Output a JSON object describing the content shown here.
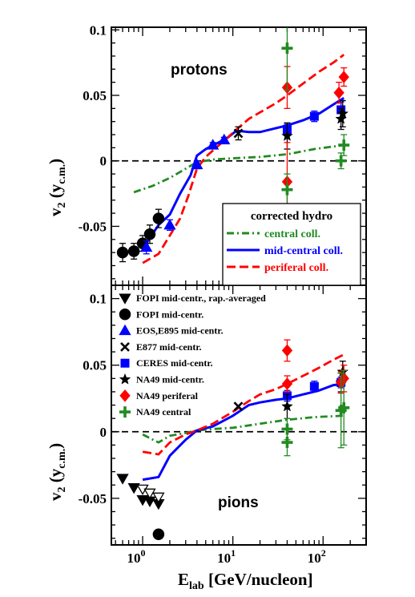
{
  "chart_data": {
    "type": "scatter",
    "x_axis": {
      "label_main": "E",
      "label_sub": "lab",
      "label_rest": " [GeV/nucleon]",
      "scale": "log",
      "xlim": [
        0.45,
        300
      ],
      "tick_labels": [
        {
          "value": 1,
          "base": "10",
          "exp": "0"
        },
        {
          "value": 10,
          "base": "10",
          "exp": "1"
        },
        {
          "value": 100,
          "base": "10",
          "exp": "2"
        }
      ]
    },
    "y_axis": {
      "label_main": "v",
      "label_sub1": "2",
      "label_mid": " (y",
      "label_sub2": "c.m.",
      "label_end": ")"
    },
    "panels": [
      {
        "id": "protons",
        "label": "protons",
        "ylim": [
          -0.095,
          0.102
        ],
        "yticks": [
          {
            "value": 0.1,
            "label": "0.1"
          },
          {
            "value": 0.05,
            "label": "0.05"
          },
          {
            "value": 0,
            "label": "0"
          },
          {
            "value": -0.05,
            "label": "-0.05"
          }
        ],
        "legend": {
          "title": "corrected hydro",
          "entries": [
            {
              "name": "central coll.",
              "color": "#228B22",
              "style": "dashdot"
            },
            {
              "name": "mid-central coll.",
              "color": "#0000FF",
              "style": "solid"
            },
            {
              "name": "periferal coll.",
              "color": "#FF0000",
              "style": "dashed"
            }
          ]
        },
        "curves": [
          {
            "name": "central coll.",
            "color": "#228B22",
            "style": "dashdot",
            "x": [
              0.8,
              1.3,
              2,
              3,
              4,
              6,
              10,
              20,
              40,
              80,
              170
            ],
            "y": [
              -0.024,
              -0.019,
              -0.013,
              -0.006,
              -0.001,
              0.001,
              0.002,
              0.003,
              0.005,
              0.009,
              0.012
            ]
          },
          {
            "name": "mid-central coll.",
            "color": "#0000FF",
            "style": "solid",
            "x": [
              1,
              1.5,
              2,
              2.6,
              3.4,
              4,
              5,
              6.5,
              8.5,
              11,
              15,
              20,
              30,
              40,
              60,
              90,
              130,
              170
            ],
            "y": [
              -0.067,
              -0.049,
              -0.041,
              -0.025,
              -0.011,
              0.004,
              0.009,
              0.013,
              0.017,
              0.023,
              0.022,
              0.022,
              0.025,
              0.027,
              0.031,
              0.036,
              0.043,
              0.048
            ]
          },
          {
            "name": "periferal coll.",
            "color": "#FF0000",
            "style": "dashed",
            "x": [
              1,
              1.5,
              2,
              2.6,
              3.2,
              4,
              5,
              6.5,
              8.5,
              11,
              15,
              20,
              30,
              40,
              60,
              90,
              130,
              170
            ],
            "y": [
              -0.078,
              -0.071,
              -0.057,
              -0.044,
              -0.027,
              -0.006,
              0.003,
              0.01,
              0.017,
              0.024,
              0.032,
              0.037,
              0.044,
              0.05,
              0.059,
              0.068,
              0.075,
              0.081
            ]
          }
        ],
        "points": [
          {
            "series": "FOPI mid-centr.",
            "x": 0.6,
            "y": -0.07,
            "err": 0.007
          },
          {
            "series": "FOPI mid-centr.",
            "x": 0.8,
            "y": -0.069,
            "err": 0.006
          },
          {
            "series": "FOPI mid-centr.",
            "x": 1.0,
            "y": -0.063,
            "err": 0.006
          },
          {
            "series": "FOPI mid-centr.",
            "x": 1.2,
            "y": -0.056,
            "err": 0.007
          },
          {
            "series": "FOPI mid-centr.",
            "x": 1.5,
            "y": -0.044,
            "err": 0.007
          },
          {
            "series": "EOS,E895 mid-centr.",
            "x": 1.1,
            "y": -0.066,
            "err": 0.005
          },
          {
            "series": "EOS,E895 mid-centr.",
            "x": 2.0,
            "y": -0.049,
            "err": 0.004
          },
          {
            "series": "EOS,E895 mid-centr.",
            "x": 4.0,
            "y": -0.003,
            "err": 0.003
          },
          {
            "series": "EOS,E895 mid-centr.",
            "x": 6.0,
            "y": 0.012,
            "err": 0.002
          },
          {
            "series": "EOS,E895 mid-centr.",
            "x": 8.0,
            "y": 0.016,
            "err": 0.002
          },
          {
            "series": "E877 mid-centr.",
            "x": 11.5,
            "y": 0.021,
            "err": 0.005
          },
          {
            "series": "CERES mid-centr.",
            "x": 40,
            "y": 0.024,
            "err": 0.004
          },
          {
            "series": "CERES mid-centr.",
            "x": 80,
            "y": 0.034,
            "err": 0.004
          },
          {
            "series": "CERES mid-centr.",
            "x": 158,
            "y": 0.039,
            "err": 0.006
          },
          {
            "series": "NA49 mid-centr.",
            "x": 40,
            "y": 0.019,
            "err": 0.01
          },
          {
            "series": "NA49 mid-centr.",
            "x": 158,
            "y": 0.032,
            "err": 0.008
          },
          {
            "series": "NA49 mid-centr.",
            "x": 165,
            "y": 0.036,
            "err": 0.01
          },
          {
            "series": "NA49 periferal",
            "x": 40,
            "y": 0.056,
            "err": 0.016
          },
          {
            "series": "NA49 periferal",
            "x": 40,
            "y": -0.016,
            "err": 0.03
          },
          {
            "series": "NA49 periferal",
            "x": 150,
            "y": 0.052,
            "err": 0.008
          },
          {
            "series": "NA49 periferal",
            "x": 170,
            "y": 0.064,
            "err": 0.007
          },
          {
            "series": "NA49 central",
            "x": 40,
            "y": 0.086,
            "err": 0.032
          },
          {
            "series": "NA49 central",
            "x": 40,
            "y": -0.022,
            "err": 0.012
          },
          {
            "series": "NA49 central",
            "x": 158,
            "y": 0.0,
            "err": 0.006
          },
          {
            "series": "NA49 central",
            "x": 170,
            "y": 0.012,
            "err": 0.008
          }
        ]
      },
      {
        "id": "pions",
        "label": "pions",
        "ylim": [
          -0.085,
          0.11
        ],
        "yticks": [
          {
            "value": 0.1,
            "label": "0.1"
          },
          {
            "value": 0.05,
            "label": "0.05"
          },
          {
            "value": 0,
            "label": "0"
          },
          {
            "value": -0.05,
            "label": "-0.05"
          }
        ],
        "legend": {
          "entries": [
            {
              "name": "FOPI mid-centr., rap.-averaged",
              "color": "#000000",
              "marker": "tri-down"
            },
            {
              "name": "FOPI mid-centr.",
              "color": "#000000",
              "marker": "circle"
            },
            {
              "name": "EOS,E895 mid-centr.",
              "color": "#0000FF",
              "marker": "tri-up"
            },
            {
              "name": "E877 mid-centr.",
              "color": "#000000",
              "marker": "cross"
            },
            {
              "name": "CERES mid-centr.",
              "color": "#0000FF",
              "marker": "square"
            },
            {
              "name": "NA49 mid-centr.",
              "color": "#000000",
              "marker": "star"
            },
            {
              "name": "NA49 periferal",
              "color": "#FF0000",
              "marker": "diamond"
            },
            {
              "name": "NA49 central",
              "color": "#228B22",
              "marker": "plus"
            }
          ]
        },
        "curves": [
          {
            "name": "central coll.",
            "color": "#228B22",
            "style": "dashdot",
            "x": [
              1,
              1.3,
              1.5,
              2,
              3,
              4,
              6,
              10,
              20,
              40,
              80,
              170
            ],
            "y": [
              -0.002,
              -0.006,
              -0.008,
              -0.003,
              -0.001,
              0.001,
              0.002,
              0.003,
              0.006,
              0.009,
              0.011,
              0.012
            ]
          },
          {
            "name": "mid-central coll.",
            "color": "#0000FF",
            "style": "solid",
            "x": [
              1,
              1.5,
              2,
              3,
              4,
              6,
              10,
              15,
              20,
              30,
              40,
              60,
              90,
              130,
              170
            ],
            "y": [
              -0.036,
              -0.034,
              -0.018,
              -0.006,
              0.001,
              0.004,
              0.012,
              0.02,
              0.022,
              0.024,
              0.025,
              0.028,
              0.031,
              0.035,
              0.036
            ]
          },
          {
            "name": "periferal coll.",
            "color": "#FF0000",
            "style": "dashed",
            "x": [
              1,
              1.5,
              2,
              3,
              4,
              6,
              10,
              15,
              20,
              30,
              40,
              60,
              90,
              130,
              170
            ],
            "y": [
              -0.015,
              -0.017,
              -0.008,
              -0.002,
              0.001,
              0.006,
              0.015,
              0.023,
              0.028,
              0.032,
              0.036,
              0.042,
              0.048,
              0.054,
              0.058
            ]
          }
        ],
        "points": [
          {
            "series": "FOPI mid-centr., rap.-averaged",
            "x": 0.6,
            "y": -0.035,
            "err": 0
          },
          {
            "series": "FOPI mid-centr., rap.-averaged",
            "x": 0.8,
            "y": -0.042,
            "err": 0
          },
          {
            "series": "FOPI mid-centr., rap.-averaged",
            "x": 1.0,
            "y": -0.051,
            "err": 0
          },
          {
            "series": "FOPI mid-centr., rap.-averaged",
            "x": 1.2,
            "y": -0.052,
            "err": 0
          },
          {
            "series": "FOPI mid-centr., rap.-averaged",
            "x": 1.5,
            "y": -0.054,
            "err": 0
          },
          {
            "series": "FOPI mid-centr., rap.-averaged (open)",
            "x": 1.0,
            "y": -0.043,
            "err": 0
          },
          {
            "series": "FOPI mid-centr., rap.-averaged (open)",
            "x": 1.2,
            "y": -0.046,
            "err": 0
          },
          {
            "series": "FOPI mid-centr., rap.-averaged (open)",
            "x": 1.5,
            "y": -0.049,
            "err": 0
          },
          {
            "series": "FOPI mid-centr.",
            "x": 1.5,
            "y": -0.077,
            "err": 0
          },
          {
            "series": "E877 mid-centr.",
            "x": 11.5,
            "y": 0.019,
            "err": 0
          },
          {
            "series": "CERES mid-centr.",
            "x": 40,
            "y": 0.027,
            "err": 0.004
          },
          {
            "series": "CERES mid-centr.",
            "x": 80,
            "y": 0.034,
            "err": 0.004
          },
          {
            "series": "CERES mid-centr.",
            "x": 158,
            "y": 0.037,
            "err": 0.004
          },
          {
            "series": "NA49 mid-centr.",
            "x": 40,
            "y": 0.019,
            "err": 0.009
          },
          {
            "series": "NA49 mid-centr.",
            "x": 158,
            "y": 0.037,
            "err": 0.007
          },
          {
            "series": "NA49 mid-centr.",
            "x": 165,
            "y": 0.045,
            "err": 0.008
          },
          {
            "series": "NA49 periferal",
            "x": 40,
            "y": 0.061,
            "err": 0.008
          },
          {
            "series": "NA49 periferal",
            "x": 40,
            "y": 0.036,
            "err": 0.006
          },
          {
            "series": "NA49 periferal",
            "x": 158,
            "y": 0.037,
            "err": 0.008
          },
          {
            "series": "NA49 periferal",
            "x": 170,
            "y": 0.04,
            "err": 0.01
          },
          {
            "series": "NA49 central",
            "x": 40,
            "y": 0.002,
            "err": 0.008
          },
          {
            "series": "NA49 central",
            "x": 40,
            "y": -0.008,
            "err": 0.01
          },
          {
            "series": "NA49 central",
            "x": 158,
            "y": 0.016,
            "err": 0.028
          },
          {
            "series": "NA49 central",
            "x": 170,
            "y": 0.018,
            "err": 0.028
          }
        ]
      }
    ],
    "series_styles": {
      "FOPI mid-centr., rap.-averaged": {
        "color": "#000000",
        "marker": "tri-down",
        "fill": true
      },
      "FOPI mid-centr., rap.-averaged (open)": {
        "color": "#000000",
        "marker": "tri-down",
        "fill": false
      },
      "FOPI mid-centr.": {
        "color": "#000000",
        "marker": "circle",
        "fill": true
      },
      "EOS,E895 mid-centr.": {
        "color": "#0000FF",
        "marker": "tri-up",
        "fill": true
      },
      "E877 mid-centr.": {
        "color": "#000000",
        "marker": "cross",
        "fill": true
      },
      "CERES mid-centr.": {
        "color": "#0000FF",
        "marker": "square",
        "fill": true
      },
      "NA49 mid-centr.": {
        "color": "#000000",
        "marker": "star",
        "fill": true
      },
      "NA49 periferal": {
        "color": "#FF0000",
        "marker": "diamond",
        "fill": true
      },
      "NA49 central": {
        "color": "#228B22",
        "marker": "plus",
        "fill": true
      }
    }
  }
}
